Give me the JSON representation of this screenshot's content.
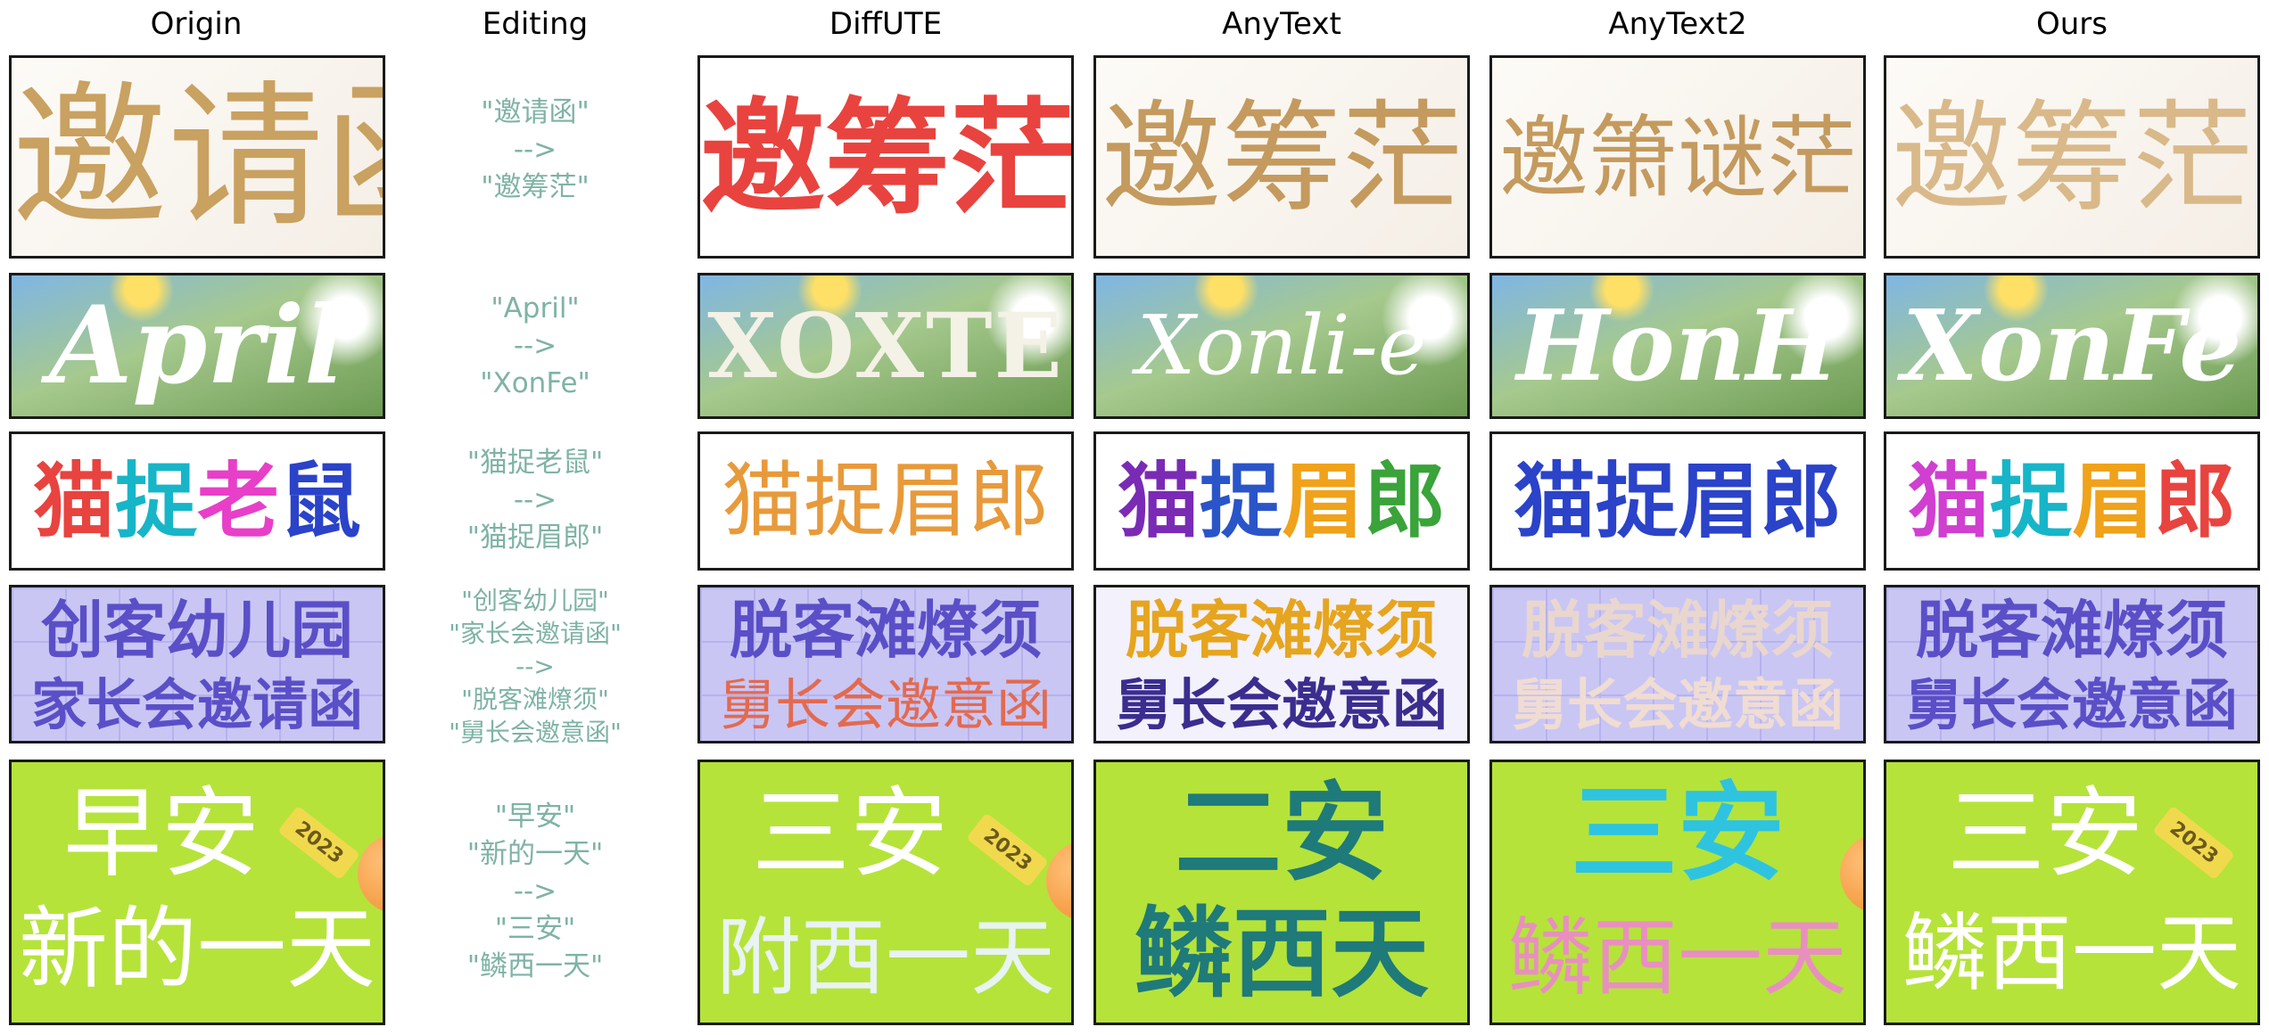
{
  "headers": [
    "Origin",
    "Editing",
    "DiffUTE",
    "AnyText",
    "AnyText2",
    "Ours"
  ],
  "rows": [
    {
      "edit": [
        "\"邀请函\"",
        "-->",
        "\"邀筹茫\""
      ],
      "origin": "邀请函",
      "diffute": "邀筹茫",
      "anytext": "邀筹茫",
      "anytext2": "邀箫谜茫",
      "ours": "邀筹茫"
    },
    {
      "edit": [
        "\"April\"",
        "-->",
        "\"XonFe\""
      ],
      "origin": "April",
      "diffute": "XOXTE",
      "anytext": "Xonli-e",
      "anytext2": "HonH",
      "ours": "XonFe"
    },
    {
      "edit": [
        "\"猫捉老鼠\"",
        "-->",
        "\"猫捉眉郎\""
      ],
      "origin_chars": [
        "猫",
        "捉",
        "老",
        "鼠"
      ],
      "diffute": "猫捉眉郎",
      "anytext_chars": [
        "猫",
        "捉",
        "眉",
        "郎"
      ],
      "anytext2": "猫捉眉郎",
      "ours_chars": [
        "猫",
        "捉",
        "眉",
        "郎"
      ]
    },
    {
      "edit": [
        "\"创客幼儿园\"",
        "\"家长会邀请函\"",
        "-->",
        "\"脱客滩燎须\"",
        "\"舅长会邀意函\""
      ],
      "origin": [
        "创客幼儿园",
        "家长会邀请函"
      ],
      "diffute": [
        "脱客滩燎须",
        "舅长会邀意函"
      ],
      "anytext": [
        "脱客滩燎须",
        "舅长会邀意函"
      ],
      "anytext2": [
        "脱客滩燎须",
        "舅长会邀意函"
      ],
      "ours": [
        "脱客滩燎须",
        "舅长会邀意函"
      ]
    },
    {
      "edit": [
        "\"早安\"",
        "\"新的一天\"",
        "-->",
        "\"三安\"",
        "\"鳞西一天\""
      ],
      "origin": [
        "早安",
        "新的一天"
      ],
      "diffute": [
        "三安",
        "附西一天"
      ],
      "anytext": [
        "二安",
        "鳞西天"
      ],
      "anytext2": [
        "三安",
        "鳞西一天"
      ],
      "ours": [
        "三安",
        "鳞西一天"
      ],
      "tag": "2023"
    }
  ],
  "colors": {
    "edit_text": "#7fb3a5",
    "gold": "#c9a160",
    "red": "#e8433f",
    "purple_text": "#5b4fc8",
    "lime": "#b5e33a"
  }
}
